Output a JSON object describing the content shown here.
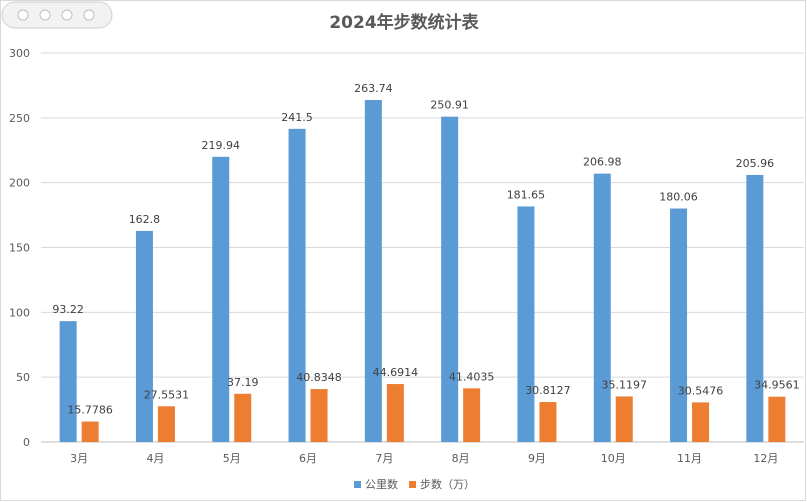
{
  "chart_data": {
    "type": "bar",
    "title": "2024年步数统计表",
    "categories": [
      "3月",
      "4月",
      "5月",
      "6月",
      "7月",
      "8月",
      "9月",
      "10月",
      "11月",
      "12月"
    ],
    "series": [
      {
        "name": "公里数",
        "color": "#5b9bd5",
        "values": [
          93.22,
          162.8,
          219.94,
          241.5,
          263.74,
          250.91,
          181.65,
          206.98,
          180.06,
          205.96
        ],
        "labels": [
          "93.22",
          "162.8",
          "219.94",
          "241.5",
          "263.74",
          "250.91",
          "181.65",
          "206.98",
          "180.06",
          "205.96"
        ]
      },
      {
        "name": "步数（万）",
        "color": "#ed7d31",
        "values": [
          15.7786,
          27.5531,
          37.19,
          40.8348,
          44.6914,
          41.4035,
          30.8127,
          35.1197,
          30.5476,
          34.9561
        ],
        "labels": [
          "15.7786",
          "27.5531",
          "37.19",
          "40.8348",
          "44.6914",
          "41.4035",
          "30.8127",
          "35.1197",
          "30.5476",
          "34.9561"
        ]
      }
    ],
    "ylim": [
      0,
      300
    ],
    "yticks": [
      0,
      50,
      100,
      150,
      200,
      250,
      300
    ],
    "grid": true,
    "legend": "bottom"
  },
  "watermark": {
    "icon": "ellipsis-dots-icon"
  }
}
